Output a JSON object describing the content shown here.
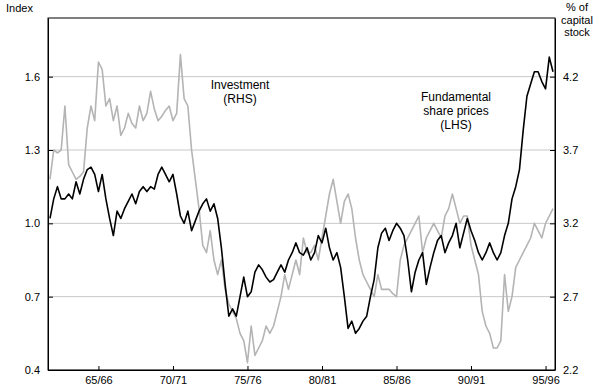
{
  "chart_data": {
    "type": "line",
    "ylabel": "Index",
    "y2label": [
      "% of",
      "capital",
      "stock"
    ],
    "annotations": [
      {
        "text": [
          "Investment",
          "(RHS)"
        ]
      },
      {
        "text": [
          "Fundamental",
          "share prices",
          "(LHS)"
        ]
      }
    ],
    "categories": [
      null,
      null,
      null,
      null,
      null,
      null,
      null,
      null,
      null,
      null,
      null,
      null,
      null,
      "65/66",
      null,
      null,
      null,
      null,
      null,
      null,
      null,
      null,
      null,
      null,
      null,
      null,
      null,
      null,
      null,
      null,
      null,
      null,
      null,
      "70/71",
      null,
      null,
      null,
      null,
      null,
      null,
      null,
      null,
      null,
      null,
      null,
      null,
      null,
      null,
      null,
      null,
      null,
      null,
      null,
      "75/76",
      null,
      null,
      null,
      null,
      null,
      null,
      null,
      null,
      null,
      null,
      null,
      null,
      null,
      null,
      null,
      null,
      null,
      null,
      null,
      "80/81",
      null,
      null,
      null,
      null,
      null,
      null,
      null,
      null,
      null,
      null,
      null,
      null,
      null,
      null,
      null,
      null,
      null,
      null,
      null,
      "85/86",
      null,
      null,
      null,
      null,
      null,
      null,
      null,
      null,
      null,
      null,
      null,
      null,
      null,
      null,
      null,
      null,
      null,
      null,
      null,
      "90/91",
      null,
      null,
      null,
      null,
      null,
      null,
      null,
      null,
      null,
      null,
      null,
      null,
      null,
      null,
      null,
      null,
      null,
      null,
      null,
      "95/96",
      null,
      null
    ],
    "series": [
      {
        "color": "#b4b4b4",
        "axis": "y2",
        "values": [
          3.5,
          3.7,
          3.68,
          3.7,
          4.0,
          3.6,
          3.55,
          3.5,
          3.52,
          3.55,
          3.85,
          4.0,
          3.9,
          4.3,
          4.25,
          4.0,
          4.05,
          3.9,
          4.0,
          3.8,
          3.85,
          3.95,
          3.88,
          3.85,
          4.0,
          3.9,
          3.95,
          4.1,
          3.98,
          3.9,
          3.93,
          3.97,
          4.0,
          3.9,
          3.95,
          4.35,
          4.05,
          4.0,
          3.7,
          3.5,
          3.3,
          3.05,
          3.0,
          3.15,
          2.95,
          2.85,
          2.95,
          2.75,
          2.65,
          2.6,
          2.55,
          2.45,
          2.4,
          2.25,
          2.5,
          2.3,
          2.35,
          2.4,
          2.5,
          2.45,
          2.5,
          2.6,
          2.7,
          2.85,
          2.75,
          2.85,
          2.95,
          2.85,
          3.1,
          3.0,
          3.0,
          3.05,
          2.95,
          3.1,
          3.25,
          3.4,
          3.5,
          3.35,
          3.2,
          3.35,
          3.4,
          3.3,
          3.1,
          2.95,
          2.85,
          2.8,
          2.75,
          2.7,
          2.85,
          2.75,
          2.75,
          2.75,
          2.72,
          2.7,
          2.95,
          3.05,
          3.1,
          3.15,
          3.2,
          3.25,
          3.0,
          3.1,
          3.15,
          3.2,
          3.15,
          3.1,
          3.25,
          3.3,
          3.4,
          3.3,
          3.2,
          3.25,
          3.25,
          3.05,
          2.95,
          2.85,
          2.6,
          2.5,
          2.45,
          2.35,
          2.35,
          2.4,
          2.85,
          2.6,
          2.7,
          2.9,
          2.95,
          3.0,
          3.05,
          3.1,
          3.2,
          3.15,
          3.1,
          3.2,
          3.25,
          3.3
        ]
      },
      {
        "color": "#000000",
        "values": [
          1.02,
          1.1,
          1.15,
          1.1,
          1.1,
          1.12,
          1.1,
          1.17,
          1.12,
          1.18,
          1.22,
          1.23,
          1.2,
          1.13,
          1.2,
          1.1,
          1.02,
          0.95,
          1.05,
          1.02,
          1.06,
          1.09,
          1.12,
          1.08,
          1.13,
          1.15,
          1.13,
          1.15,
          1.14,
          1.2,
          1.23,
          1.2,
          1.17,
          1.2,
          1.12,
          1.03,
          1.0,
          1.05,
          0.97,
          1.01,
          1.05,
          1.08,
          1.1,
          1.05,
          1.08,
          1.02,
          0.9,
          0.75,
          0.62,
          0.65,
          0.62,
          0.7,
          0.78,
          0.7,
          0.72,
          0.8,
          0.83,
          0.81,
          0.78,
          0.76,
          0.77,
          0.8,
          0.83,
          0.8,
          0.85,
          0.88,
          0.92,
          0.88,
          0.87,
          0.9,
          0.85,
          0.88,
          0.95,
          0.92,
          0.98,
          0.9,
          0.85,
          0.88,
          0.82,
          0.7,
          0.57,
          0.6,
          0.55,
          0.57,
          0.6,
          0.62,
          0.7,
          0.77,
          0.9,
          0.96,
          0.98,
          0.93,
          0.97,
          1.0,
          0.98,
          0.95,
          0.85,
          0.72,
          0.8,
          0.85,
          0.88,
          0.75,
          0.82,
          0.88,
          0.93,
          0.95,
          0.88,
          0.92,
          0.95,
          1.0,
          0.9,
          0.96,
          1.02,
          0.97,
          0.93,
          0.88,
          0.85,
          0.88,
          0.92,
          0.88,
          0.85,
          0.88,
          0.95,
          1.0,
          1.1,
          1.15,
          1.22,
          1.38,
          1.52,
          1.57,
          1.62,
          1.62,
          1.58,
          1.55,
          1.68,
          1.62
        ]
      }
    ],
    "ylim": [
      0.4,
      1.84
    ],
    "yticks": [
      0.4,
      0.7,
      {
        "value": 1,
        "label": "1.0"
      },
      1.3,
      1.6
    ],
    "y2lim": [
      2.2,
      4.6
    ],
    "y2ticks": [
      2.2,
      2.7,
      3.2,
      3.7,
      4.2
    ],
    "grid": true
  }
}
